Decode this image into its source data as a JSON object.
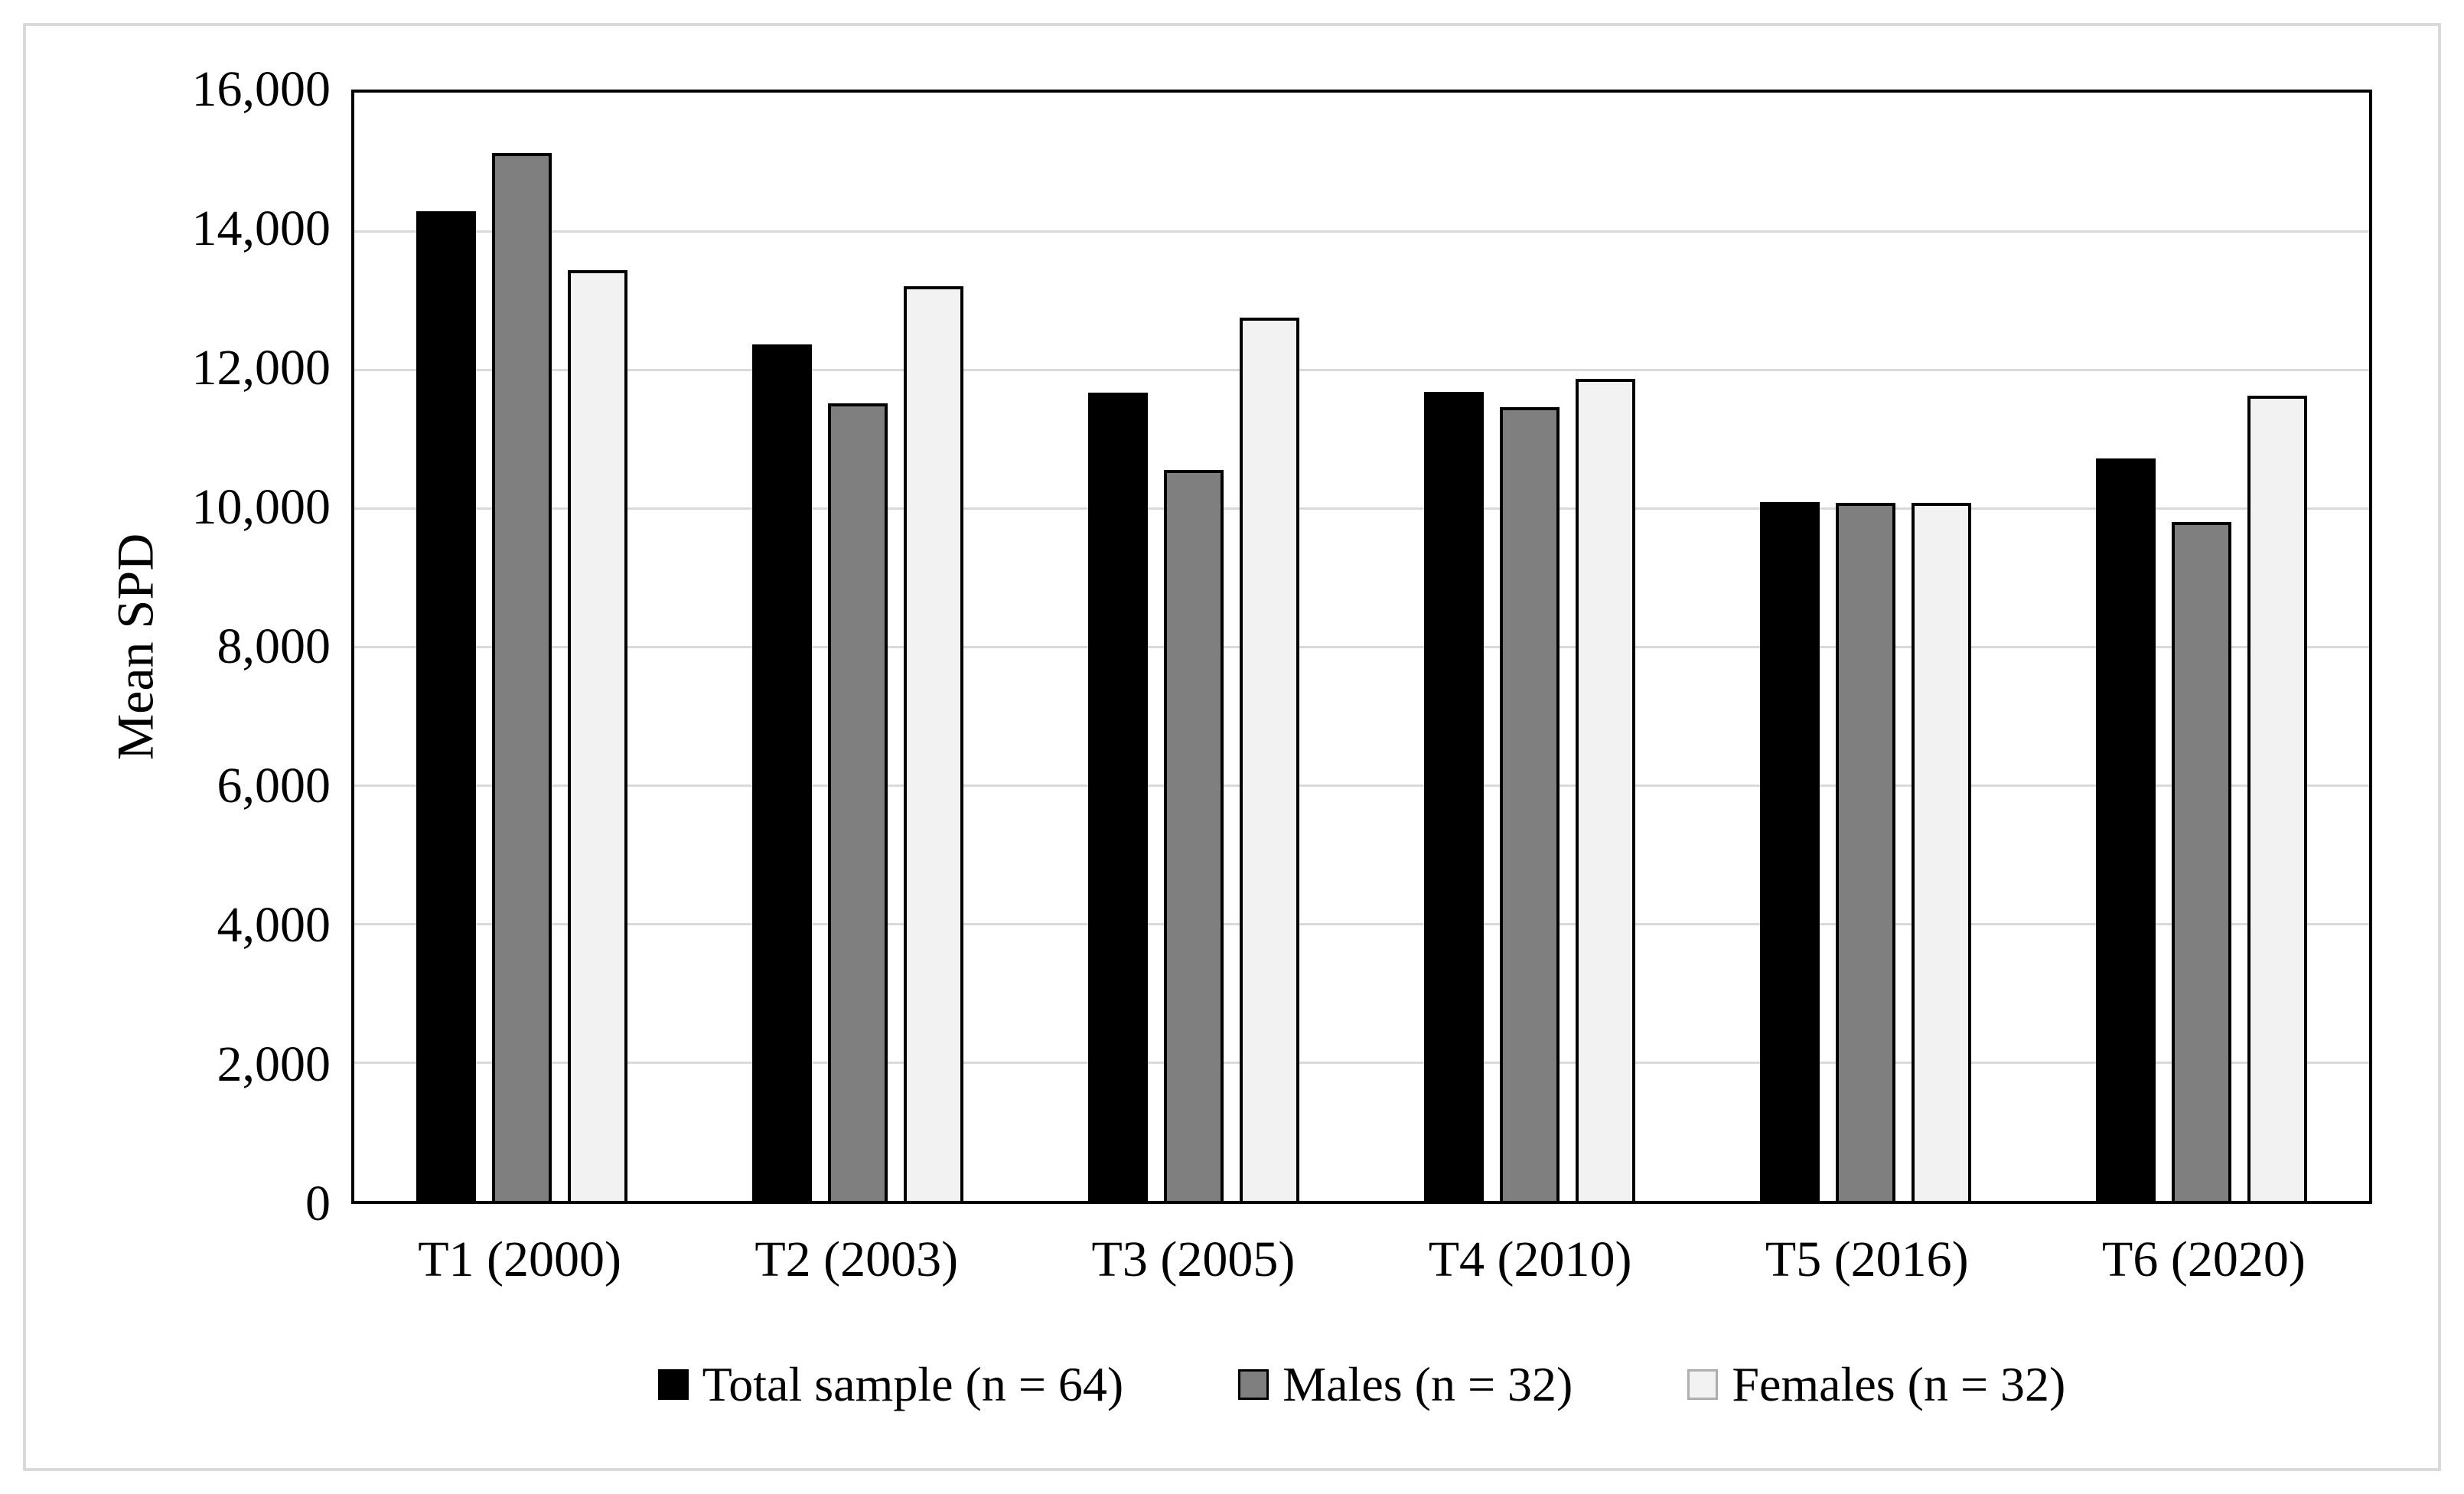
{
  "figure": {
    "background": "#ffffff",
    "outer_border_color": "#d9d9d9",
    "plot_border_color": "#000000",
    "gridline_color": "#d9d9d9"
  },
  "chart_data": {
    "type": "bar",
    "title": "",
    "xlabel": "",
    "ylabel": "Mean SPD",
    "ylim": [
      0,
      16000
    ],
    "ytick_step": 2000,
    "yticks": [
      "16,000",
      "14,000",
      "12,000",
      "10,000",
      "8,000",
      "6,000",
      "4,000",
      "2,000",
      "0"
    ],
    "grid": "horizontal",
    "legend_position": "bottom",
    "categories": [
      "T1 (2000)",
      "T2 (2003)",
      "T3 (2005)",
      "T4 (2010)",
      "T5 (2016)",
      "T6 (2020)"
    ],
    "series": [
      {
        "name": "Total sample (n = 64)",
        "color": "#000000",
        "bar_border_color": "#000000",
        "legend_swatch_border_color": "#000000",
        "values": [
          14290,
          12370,
          11670,
          11680,
          10090,
          10720
        ]
      },
      {
        "name": "Males (n = 32)",
        "color": "#7f7f7f",
        "bar_border_color": "#000000",
        "legend_swatch_border_color": "#000000",
        "values": [
          15130,
          11510,
          10550,
          11460,
          10080,
          9800
        ]
      },
      {
        "name": "Females (n = 32)",
        "color": "#f2f2f2",
        "bar_border_color": "#000000",
        "legend_swatch_border_color": "#aeaeae",
        "values": [
          13440,
          13210,
          12750,
          11870,
          10080,
          11620
        ]
      }
    ]
  }
}
